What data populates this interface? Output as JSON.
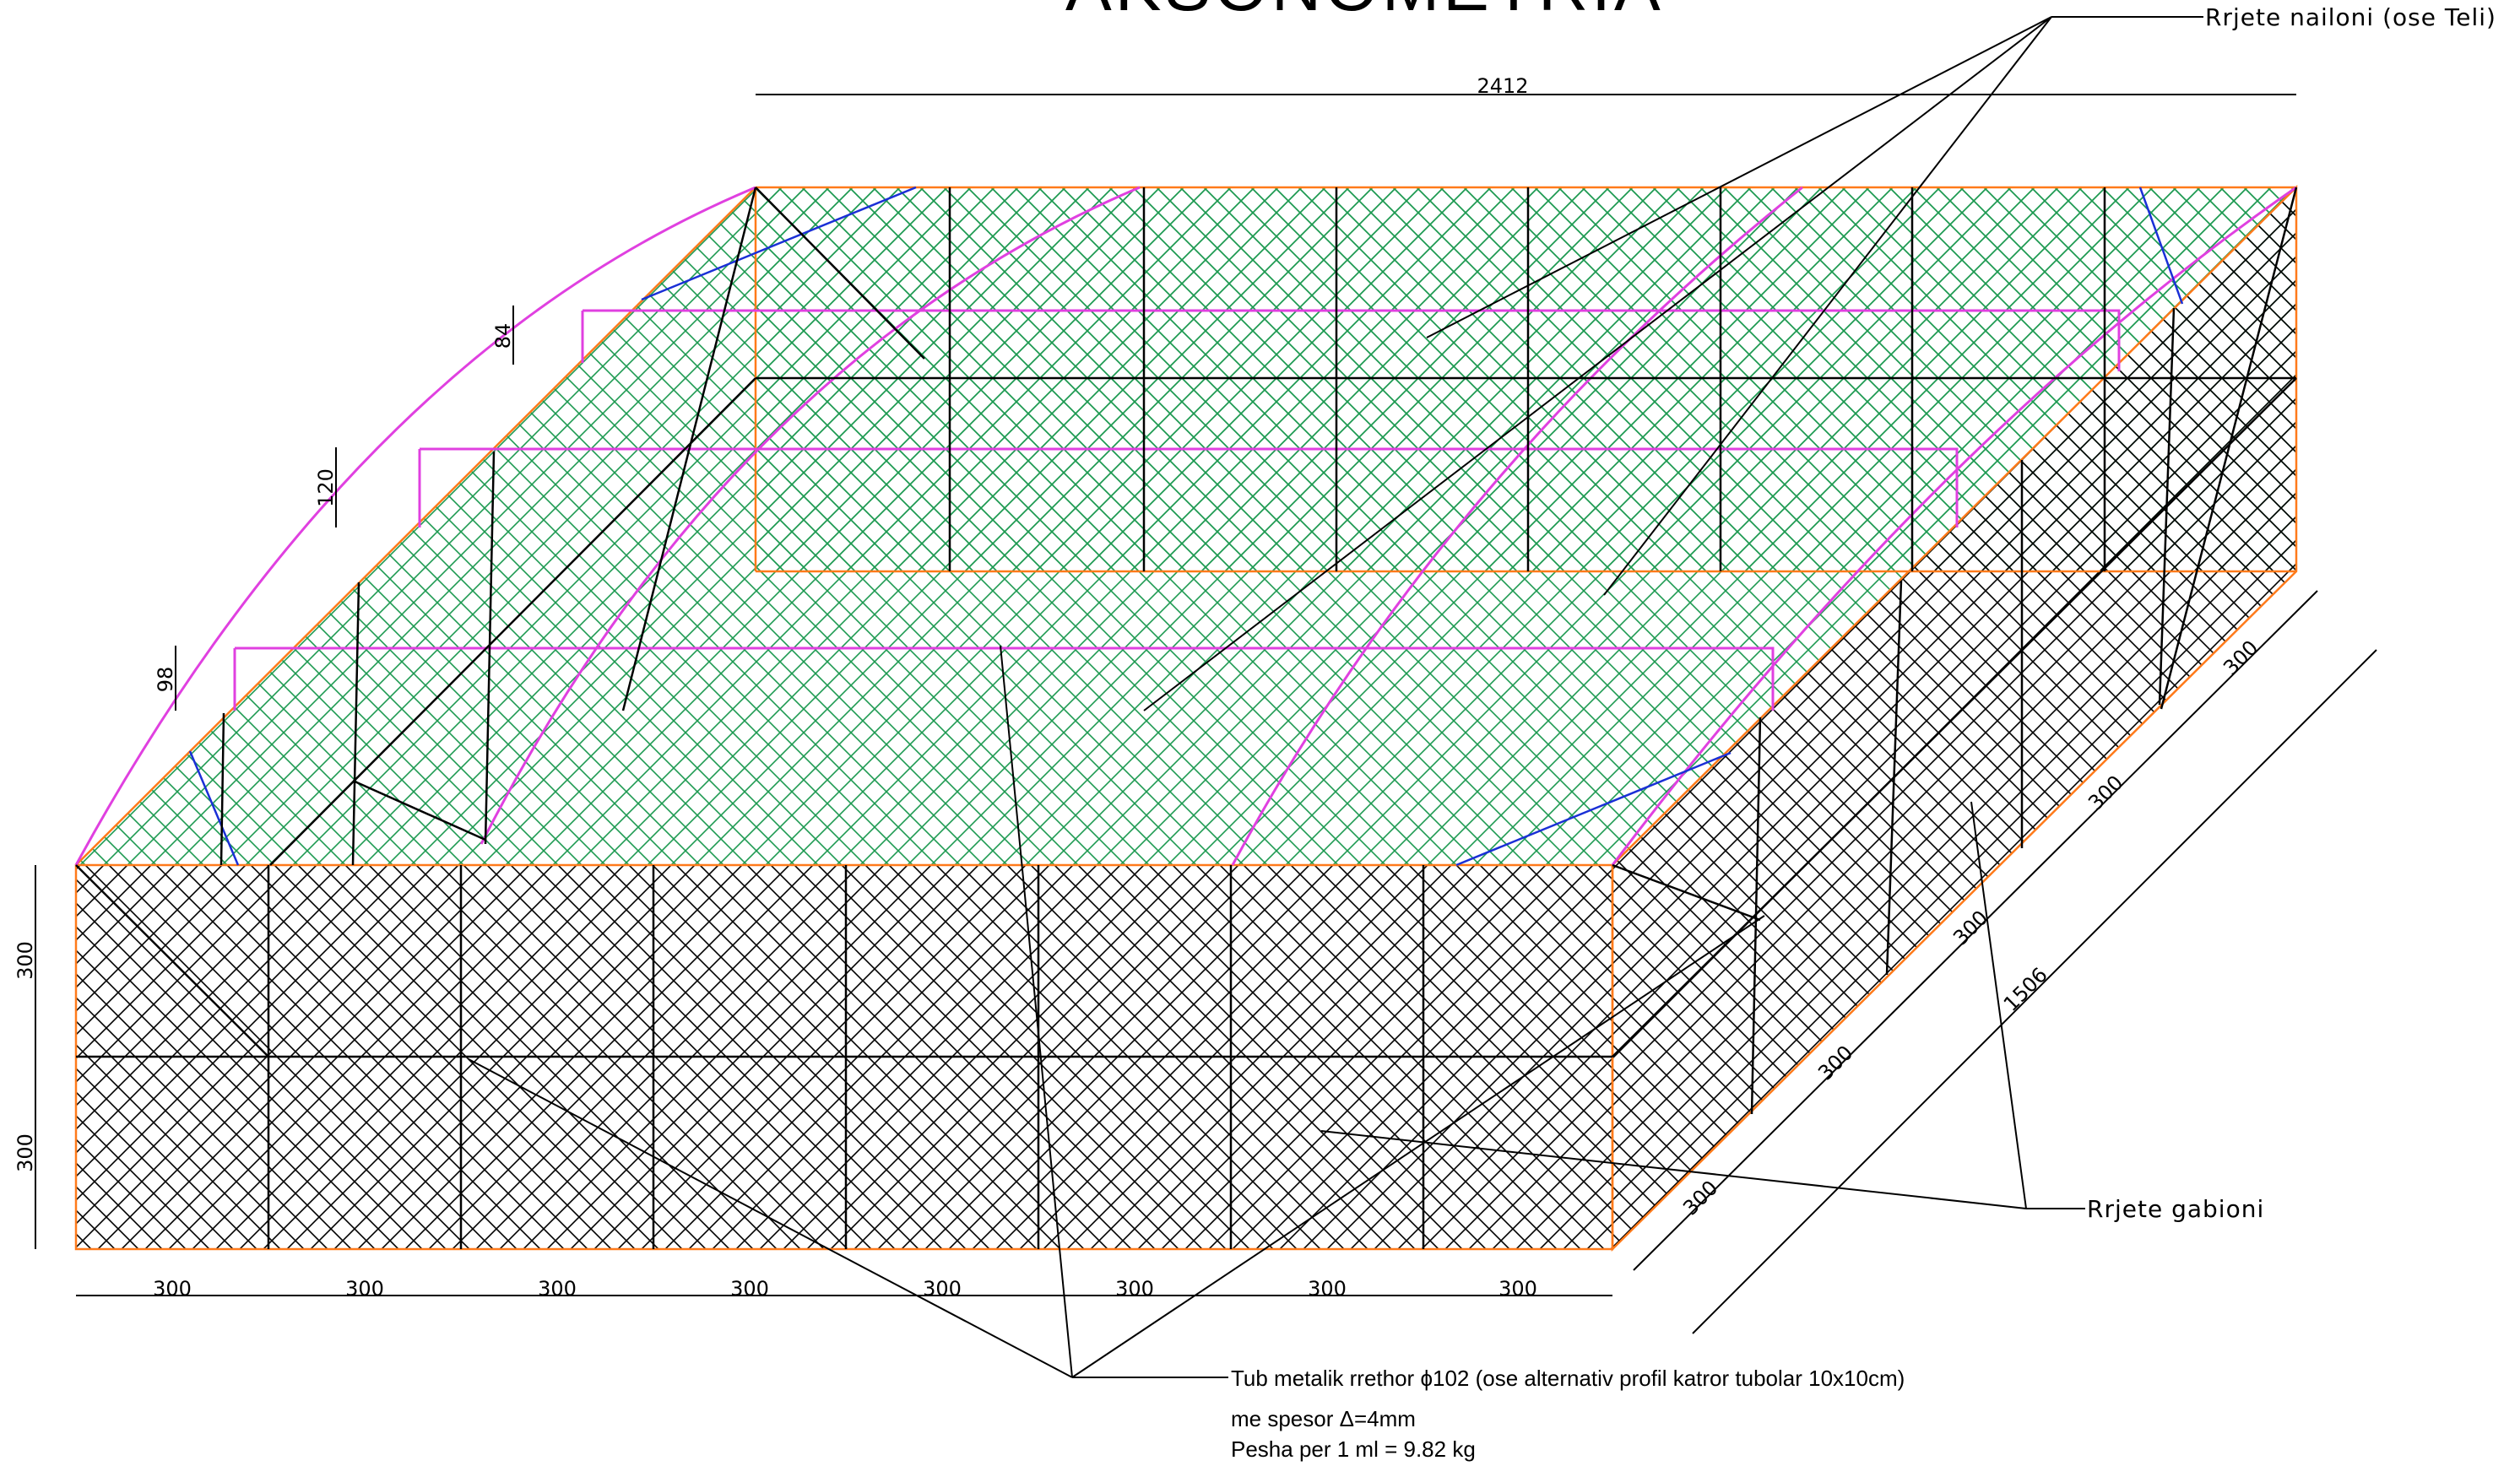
{
  "drawing": {
    "title": "AKSONOMETRIA",
    "overall_length": "2412",
    "overall_width": "1506",
    "front_heights": [
      "300",
      "300"
    ],
    "front_segments": [
      "300",
      "300",
      "300",
      "300",
      "300",
      "300",
      "300",
      "300"
    ],
    "side_segments": [
      "300",
      "300",
      "300",
      "300",
      "300"
    ],
    "side_right_segment": "300",
    "step_heights": [
      "84",
      "120",
      "98"
    ],
    "callouts": {
      "nylon_net": "Rrjete nailoni (ose Teli)",
      "gabion_net": "Rrjete gabioni",
      "pipe_line1": "Tub metalik rrethor ϕ102 (ose alternativ profil katror tubolar 10x10cm)",
      "pipe_line2": "me spesor Δ=4mm",
      "pipe_line3": "Pesha per 1 ml = 9.82 kg"
    },
    "colors": {
      "green_mesh": "#1e9a52",
      "black_mesh": "#000000",
      "outline_orange": "#ff7a1a",
      "outline_magenta": "#e040e0",
      "brace_blue": "#1a2fd6"
    }
  }
}
